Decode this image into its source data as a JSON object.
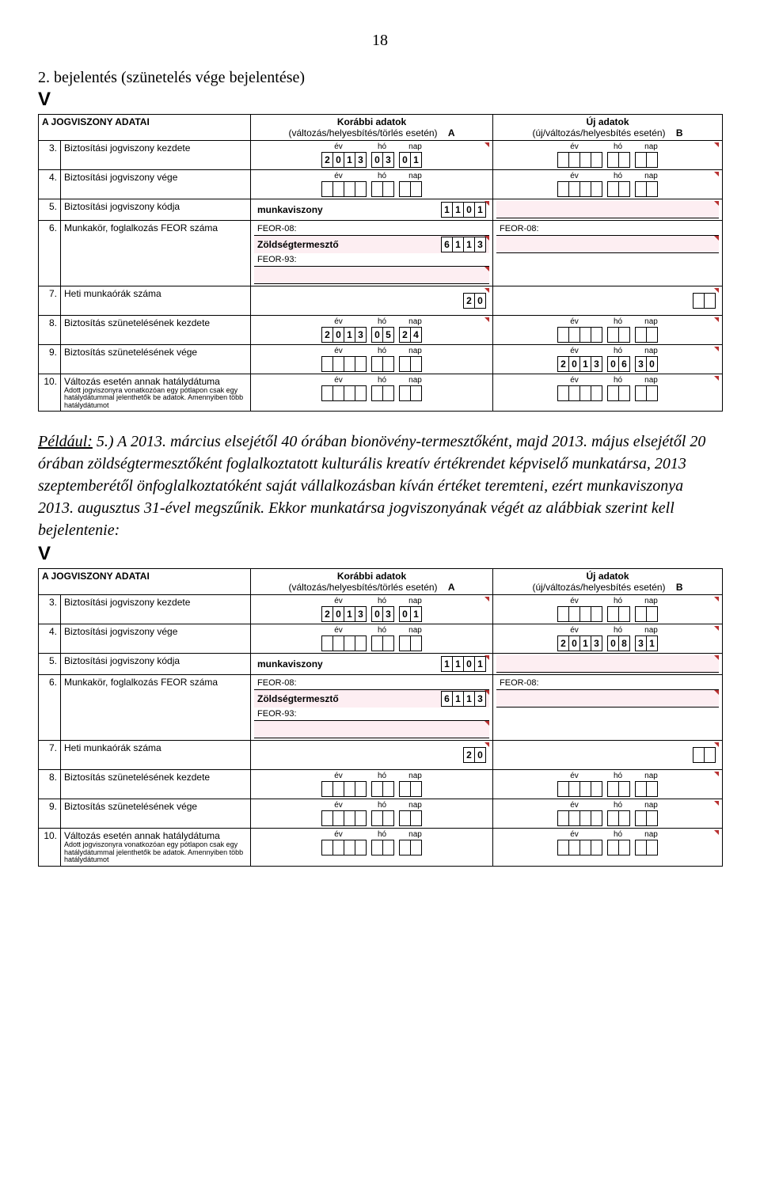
{
  "page_num": "18",
  "title2": "2. bejelentés (szünetelés vége bejelentése)",
  "v": "V",
  "note_label": "Például:",
  "note1_rest": "5.) A 2013. március elsejétől 40 órában bionövény-termesztőként, majd 2013. május elsejétől 20 órában zöldségtermesztőként foglalkoztatott kulturális kreatív értékrendet képviselő munkatársa, 2013 szeptemberétől önfoglalkoztatóként saját vállalkozásban kíván értéket teremteni, ezért munkaviszonya 2013. augusztus 31-ével megszűnik. Ekkor munkatársa jogviszonyának végét az alábbiak szerint kell bejelentenie:",
  "hdr": {
    "left": "A JOGVISZONY ADATAI",
    "mid_top": "Korábbi adatok",
    "mid_sub": "(változás/helyesbítés/törlés esetén)",
    "mid_letter": "A",
    "new_top": "Új adatok",
    "new_sub": "(új/változás/helyesbítés esetén)",
    "new_letter": "B"
  },
  "lbl_ev": "év",
  "lbl_ho": "hó",
  "lbl_nap": "nap",
  "feor08": "FEOR-08:",
  "feor93": "FEOR-93:",
  "row3": "Biztosítási jogviszony kezdete",
  "row4": "Biztosítási jogviszony vége",
  "row5": "Biztosítási jogviszony kódja",
  "row6": "Munkakör, foglalkozás FEOR száma",
  "row7": "Heti munkaórák száma",
  "row8": "Biztosítás szünetelésének kezdete",
  "row9": "Biztosítás szünetelésének vége",
  "row10": "Változás esetén annak hatálydátuma",
  "row10b": "Adott jogviszonyra vonatkozóan egy pótlapon csak egy hatálydátummal jelenthetők be adatok. Amennyiben több hatálydátumot",
  "form1": {
    "r3_prev": [
      "2",
      "0",
      "1",
      "3",
      "0",
      "3",
      "0",
      "1"
    ],
    "r5_txt": "munkaviszony",
    "r5_code": [
      "1",
      "1",
      "0",
      "1"
    ],
    "r6_txt": "Zöldségtermesztő",
    "r6_code": [
      "6",
      "1",
      "1",
      "3"
    ],
    "r7": [
      "2",
      "0"
    ],
    "r8_prev": [
      "2",
      "0",
      "1",
      "3",
      "0",
      "5",
      "2",
      "4"
    ],
    "r9_new": [
      "2",
      "0",
      "1",
      "3",
      "0",
      "6",
      "3",
      "0"
    ]
  },
  "form2": {
    "r3_prev": [
      "2",
      "0",
      "1",
      "3",
      "0",
      "3",
      "0",
      "1"
    ],
    "r4_new": [
      "2",
      "0",
      "1",
      "3",
      "0",
      "8",
      "3",
      "1"
    ],
    "r5_txt": "munkaviszony",
    "r5_code": [
      "1",
      "1",
      "0",
      "1"
    ],
    "r6_txt": "Zöldségtermesztő",
    "r6_code": [
      "6",
      "1",
      "1",
      "3"
    ],
    "r7": [
      "2",
      "0"
    ]
  }
}
